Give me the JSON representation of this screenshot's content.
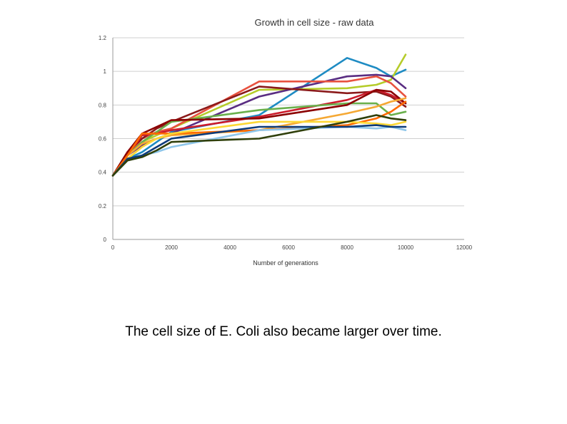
{
  "slide": {
    "caption": "The cell size of E. Coli also became larger over time."
  },
  "chart_data": {
    "type": "line",
    "title": "Growth in cell size - raw data",
    "xlabel": "Number of generations",
    "ylabel": "",
    "xlim": [
      0,
      12000
    ],
    "ylim": [
      0,
      1.2
    ],
    "x_ticks": [
      "0",
      "2000",
      "4000",
      "6000",
      "8000",
      "10000",
      "12000"
    ],
    "y_ticks": [
      "0",
      "0.2",
      "0.4",
      "0.6",
      "0.8",
      "1",
      "1.2"
    ],
    "grid": "horizontal",
    "legend": "none",
    "x": [
      0,
      500,
      1000,
      1500,
      2000,
      5000,
      8000,
      9000,
      9500,
      10000
    ],
    "series": [
      {
        "color": "#1e8bc3",
        "values": [
          0.38,
          0.48,
          0.52,
          0.58,
          0.64,
          0.74,
          1.08,
          1.02,
          0.97,
          1.01
        ]
      },
      {
        "color": "#b5cc2a",
        "values": [
          0.38,
          0.5,
          0.58,
          0.62,
          0.66,
          0.89,
          0.9,
          0.92,
          0.95,
          1.1
        ]
      },
      {
        "color": "#5a2d82",
        "values": [
          0.38,
          0.5,
          0.56,
          0.6,
          0.63,
          0.85,
          0.97,
          0.98,
          0.97,
          0.9
        ]
      },
      {
        "color": "#e8523f",
        "values": [
          0.38,
          0.5,
          0.6,
          0.64,
          0.66,
          0.94,
          0.94,
          0.97,
          0.93,
          0.85
        ]
      },
      {
        "color": "#8b1a1a",
        "values": [
          0.38,
          0.52,
          0.6,
          0.66,
          0.7,
          0.91,
          0.87,
          0.88,
          0.85,
          0.79
        ]
      },
      {
        "color": "#cc1c2c",
        "values": [
          0.38,
          0.5,
          0.62,
          0.63,
          0.65,
          0.73,
          0.83,
          0.89,
          0.86,
          0.81
        ]
      },
      {
        "color": "#6ab04c",
        "values": [
          0.38,
          0.5,
          0.58,
          0.64,
          0.7,
          0.77,
          0.81,
          0.81,
          0.74,
          0.76
        ]
      },
      {
        "color": "#8b0000",
        "values": [
          0.38,
          0.52,
          0.63,
          0.67,
          0.71,
          0.72,
          0.8,
          0.89,
          0.88,
          0.81
        ]
      },
      {
        "color": "#f5a833",
        "values": [
          0.38,
          0.5,
          0.57,
          0.6,
          0.62,
          0.65,
          0.75,
          0.79,
          0.82,
          0.84
        ]
      },
      {
        "color": "#ff6a00",
        "values": [
          0.38,
          0.5,
          0.63,
          0.63,
          0.63,
          0.65,
          0.68,
          0.72,
          0.76,
          0.82
        ]
      },
      {
        "color": "#fdd835",
        "values": [
          0.38,
          0.48,
          0.55,
          0.6,
          0.63,
          0.7,
          0.7,
          0.69,
          0.68,
          0.7
        ]
      },
      {
        "color": "#8fc6ea",
        "values": [
          0.38,
          0.47,
          0.5,
          0.52,
          0.55,
          0.65,
          0.67,
          0.66,
          0.67,
          0.65
        ]
      },
      {
        "color": "#0d3b7a",
        "values": [
          0.38,
          0.48,
          0.5,
          0.55,
          0.6,
          0.67,
          0.67,
          0.68,
          0.67,
          0.67
        ]
      },
      {
        "color": "#2f3f0a",
        "values": [
          0.38,
          0.47,
          0.49,
          0.53,
          0.58,
          0.6,
          0.7,
          0.74,
          0.72,
          0.71
        ]
      }
    ]
  }
}
